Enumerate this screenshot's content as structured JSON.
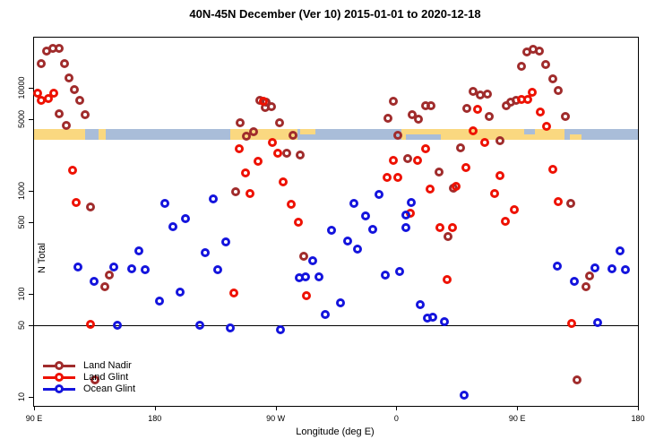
{
  "title": "40N-45N December (Ver 10)   2015-01-01 to 2020-12-18",
  "chart_data": {
    "type": "scatter",
    "title": "40N-45N December (Ver 10)   2015-01-01 to 2020-12-18",
    "xlabel": "Longitude (deg E)",
    "ylabel": "N Total",
    "x_axis": {
      "range": [
        90,
        540
      ],
      "note": "longitude axis wraps eastward: 90E > 180 > 90W > 0 > 90E > 180",
      "ticks": [
        {
          "value": 90,
          "label": "90 E"
        },
        {
          "value": 180,
          "label": "180"
        },
        {
          "value": 270,
          "label": "90 W"
        },
        {
          "value": 360,
          "label": "0"
        },
        {
          "value": 450,
          "label": "90 E"
        },
        {
          "value": 540,
          "label": "180"
        }
      ]
    },
    "y_axis": {
      "scale": "log",
      "range": [
        8.2,
        31000
      ],
      "ticks": [
        {
          "value": 10,
          "label": "10"
        },
        {
          "value": 50,
          "label": "50"
        },
        {
          "value": 100,
          "label": "100"
        },
        {
          "value": 500,
          "label": "500"
        },
        {
          "value": 1000,
          "label": "1000"
        },
        {
          "value": 5000,
          "label": "5000"
        },
        {
          "value": 10000,
          "label": "10000"
        }
      ]
    },
    "reference_line_y": 50,
    "map_band": {
      "y_top_value": 4050,
      "y_bottom_value": 3150,
      "land_color": "#FAD880",
      "ocean_color": "#A9BDD9",
      "segments": [
        {
          "type": "land",
          "from": 90,
          "to": 128
        },
        {
          "type": "ocean",
          "from": 128,
          "to": 138
        },
        {
          "type": "land",
          "from": 138,
          "to": 143.5
        },
        {
          "type": "ocean",
          "from": 143.5,
          "to": 236.5
        },
        {
          "type": "land",
          "from": 236.5,
          "to": 286.5
        },
        {
          "type": "ocean",
          "from": 286.5,
          "to": 363.5
        },
        {
          "type": "land",
          "from": 363.5,
          "to": 485
        },
        {
          "type": "ocean",
          "from": 485,
          "to": 540
        }
      ],
      "patches": [
        {
          "type": "land",
          "pos": "top",
          "from": 288.5,
          "to": 300
        },
        {
          "type": "ocean",
          "pos": "bottom",
          "from": 367,
          "to": 393
        },
        {
          "type": "ocean",
          "pos": "top",
          "from": 455,
          "to": 463
        },
        {
          "type": "land",
          "pos": "bottom",
          "from": 489,
          "to": 498
        }
      ]
    },
    "series": [
      {
        "name": "Land Nadir",
        "color": "#A02C2C",
        "points": [
          [
            95.1,
            17200
          ],
          [
            99.5,
            23000
          ],
          [
            104.0,
            24400
          ],
          [
            108.5,
            24200
          ],
          [
            112.5,
            17200
          ],
          [
            115.8,
            12500
          ],
          [
            120.2,
            9730
          ],
          [
            124.0,
            7590
          ],
          [
            128.2,
            5500
          ],
          [
            108.9,
            5690
          ],
          [
            114.0,
            4380
          ],
          [
            132.2,
            698
          ],
          [
            146.2,
            154
          ],
          [
            142.7,
            119
          ],
          [
            135.5,
            14.7
          ],
          [
            240.0,
            990
          ],
          [
            258.2,
            7590
          ],
          [
            263.1,
            7330
          ],
          [
            262.2,
            6550
          ],
          [
            267.1,
            6620
          ],
          [
            243.3,
            4580
          ],
          [
            272.7,
            4650
          ],
          [
            253.3,
            3750
          ],
          [
            248.2,
            3390
          ],
          [
            283.1,
            3510
          ],
          [
            278.2,
            2340
          ],
          [
            288.2,
            2230
          ],
          [
            291.1,
            233
          ],
          [
            353.5,
            5140
          ],
          [
            357.5,
            7430
          ],
          [
            361.3,
            3510
          ],
          [
            368.2,
            2070
          ],
          [
            372.0,
            5500
          ],
          [
            376.5,
            5000
          ],
          [
            382.0,
            6720
          ],
          [
            386.0,
            6720
          ],
          [
            392.0,
            1530
          ],
          [
            398.2,
            361
          ],
          [
            402.7,
            1060
          ],
          [
            407.5,
            2620
          ],
          [
            412.7,
            6420
          ],
          [
            417.1,
            9410
          ],
          [
            422.5,
            8570
          ],
          [
            427.5,
            8700
          ],
          [
            429.3,
            5280
          ],
          [
            437.3,
            3120
          ],
          [
            441.8,
            6720
          ],
          [
            445.3,
            7390
          ],
          [
            449.1,
            7690
          ],
          [
            452.9,
            16400
          ],
          [
            456.9,
            22500
          ],
          [
            461.8,
            24000
          ],
          [
            466.2,
            23000
          ],
          [
            471.3,
            17000
          ],
          [
            476.5,
            12400
          ],
          [
            480.7,
            9600
          ],
          [
            486.2,
            5350
          ],
          [
            489.8,
            759
          ],
          [
            501.3,
            119
          ],
          [
            504.2,
            150
          ],
          [
            494.7,
            14.7
          ]
        ]
      },
      {
        "name": "Land Glint",
        "color": "#EE1100",
        "points": [
          [
            92.7,
            8920
          ],
          [
            95.5,
            7690
          ],
          [
            100.7,
            7990
          ],
          [
            104.5,
            8970
          ],
          [
            118.5,
            1590
          ],
          [
            121.5,
            772
          ],
          [
            132.2,
            51
          ],
          [
            243.1,
            2590
          ],
          [
            247.8,
            1510
          ],
          [
            251.1,
            958
          ],
          [
            257.1,
            1940
          ],
          [
            261.1,
            7460
          ],
          [
            267.8,
            3000
          ],
          [
            271.5,
            2340
          ],
          [
            275.3,
            1240
          ],
          [
            281.5,
            747
          ],
          [
            286.7,
            499
          ],
          [
            238.9,
            102
          ],
          [
            292.7,
            96
          ],
          [
            352.7,
            1370
          ],
          [
            358.0,
            2010
          ],
          [
            360.9,
            1370
          ],
          [
            370.5,
            611
          ],
          [
            376.0,
            1990
          ],
          [
            382.0,
            2560
          ],
          [
            385.3,
            1040
          ],
          [
            392.5,
            445
          ],
          [
            402.0,
            445
          ],
          [
            397.5,
            139
          ],
          [
            404.7,
            1120
          ],
          [
            412.0,
            1710
          ],
          [
            417.1,
            3880
          ],
          [
            420.2,
            6210
          ],
          [
            425.8,
            2960
          ],
          [
            432.9,
            950
          ],
          [
            437.3,
            1430
          ],
          [
            441.3,
            508
          ],
          [
            447.5,
            665
          ],
          [
            452.9,
            7810
          ],
          [
            458.0,
            7830
          ],
          [
            461.3,
            9080
          ],
          [
            466.9,
            5900
          ],
          [
            471.8,
            4290
          ],
          [
            476.5,
            1640
          ],
          [
            480.7,
            790
          ],
          [
            490.7,
            52
          ]
        ]
      },
      {
        "name": "Ocean Glint",
        "color": "#1414DD",
        "points": [
          [
            187.3,
            758
          ],
          [
            202.7,
            540
          ],
          [
            223.3,
            835
          ],
          [
            193.3,
            450
          ],
          [
            167.8,
            264
          ],
          [
            122.9,
            185
          ],
          [
            149.5,
            182
          ],
          [
            162.7,
            175
          ],
          [
            172.9,
            173
          ],
          [
            134.5,
            133
          ],
          [
            183.3,
            85
          ],
          [
            198.9,
            105
          ],
          [
            151.8,
            50
          ],
          [
            213.8,
            50
          ],
          [
            233.1,
            321
          ],
          [
            217.5,
            251
          ],
          [
            227.1,
            173
          ],
          [
            236.5,
            47
          ],
          [
            273.8,
            45
          ],
          [
            297.8,
            211
          ],
          [
            287.5,
            143
          ],
          [
            292.2,
            146
          ],
          [
            302.2,
            148
          ],
          [
            311.5,
            414
          ],
          [
            306.7,
            63
          ],
          [
            318.0,
            82
          ],
          [
            328.0,
            758
          ],
          [
            337.1,
            570
          ],
          [
            346.9,
            926
          ],
          [
            366.9,
            581
          ],
          [
            371.3,
            770
          ],
          [
            342.5,
            423
          ],
          [
            366.9,
            443
          ],
          [
            323.8,
            327
          ],
          [
            330.9,
            275
          ],
          [
            352.0,
            154
          ],
          [
            362.7,
            165
          ],
          [
            377.5,
            79
          ],
          [
            383.1,
            58
          ],
          [
            386.9,
            60
          ],
          [
            395.8,
            54
          ],
          [
            410.5,
            10.5
          ],
          [
            480.2,
            188
          ],
          [
            492.5,
            133
          ],
          [
            508.0,
            180
          ],
          [
            520.9,
            176
          ],
          [
            530.7,
            173
          ],
          [
            526.5,
            264
          ],
          [
            509.8,
            53
          ]
        ]
      }
    ],
    "legend": {
      "position": "bottom-left",
      "items": [
        {
          "label": "Land Nadir",
          "color": "#A02C2C"
        },
        {
          "label": "Land Glint",
          "color": "#EE1100"
        },
        {
          "label": "Ocean Glint",
          "color": "#1414DD"
        }
      ]
    }
  }
}
